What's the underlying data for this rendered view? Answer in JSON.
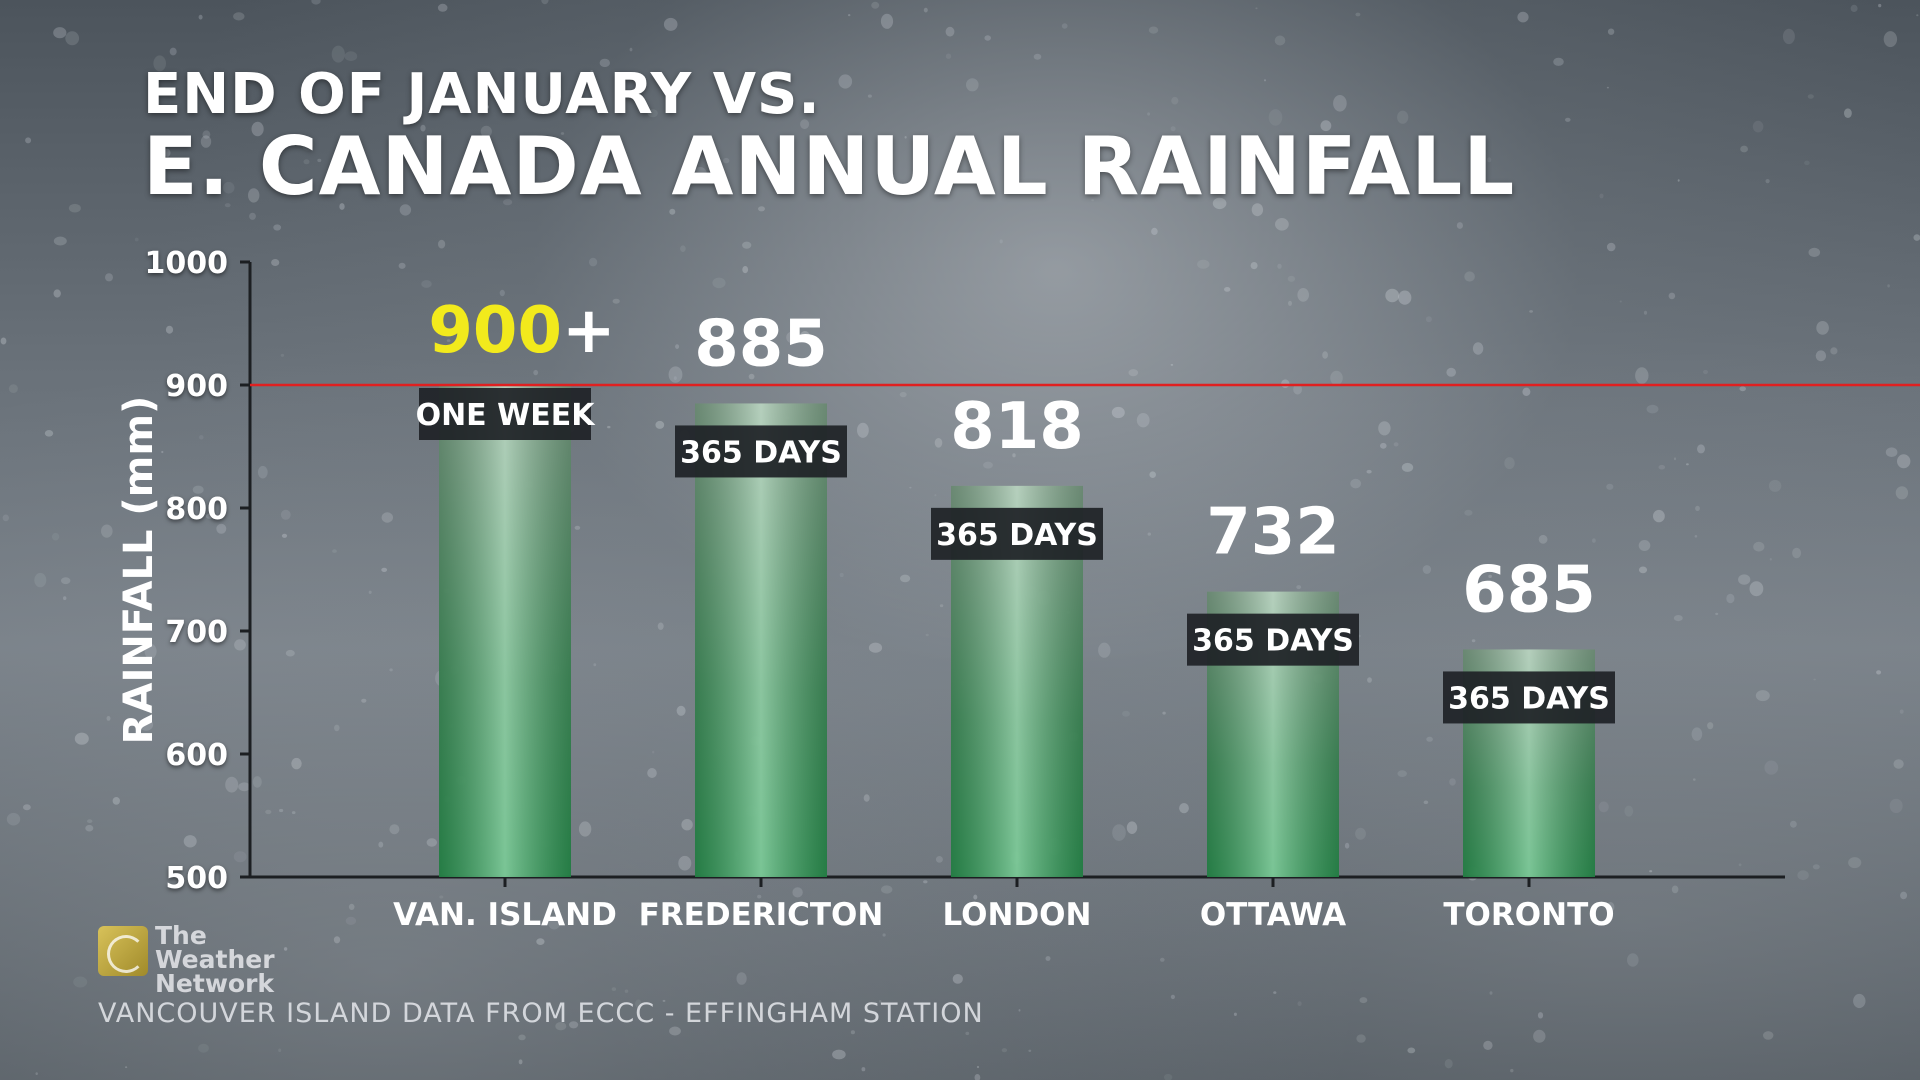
{
  "title_line1": "END OF JANUARY VS.",
  "title_line2": "E. CANADA ANNUAL RAINFALL",
  "logo": {
    "text_line1": "The Weather",
    "text_line2": "Network"
  },
  "footnote": "VANCOUVER ISLAND DATA FROM ECCC - EFFINGHAM STATION",
  "chart_data": {
    "type": "bar",
    "ylabel": "RAINFALL (mm)",
    "xlabel": "",
    "ylim": [
      500,
      1000
    ],
    "yticks": [
      500,
      600,
      700,
      800,
      900,
      1000
    ],
    "categories": [
      "VAN. ISLAND",
      "FREDERICTON",
      "LONDON",
      "OTTAWA",
      "TORONTO"
    ],
    "values": [
      900,
      885,
      818,
      732,
      685
    ],
    "value_labels": [
      {
        "number": "900",
        "suffix": "+"
      },
      {
        "number": "885",
        "suffix": ""
      },
      {
        "number": "818",
        "suffix": ""
      },
      {
        "number": "732",
        "suffix": ""
      },
      {
        "number": "685",
        "suffix": ""
      }
    ],
    "period_labels": [
      "ONE WEEK",
      "365 DAYS",
      "365 DAYS",
      "365 DAYS",
      "365 DAYS"
    ],
    "reference_line": {
      "value": 900,
      "color": "#e02020"
    },
    "colors": {
      "bar_top": "#8fb89a",
      "bar_bottom": "#2ea85a",
      "highlight_value": "#f2ea1c",
      "label_box": "#1e2226"
    },
    "grid": false
  }
}
